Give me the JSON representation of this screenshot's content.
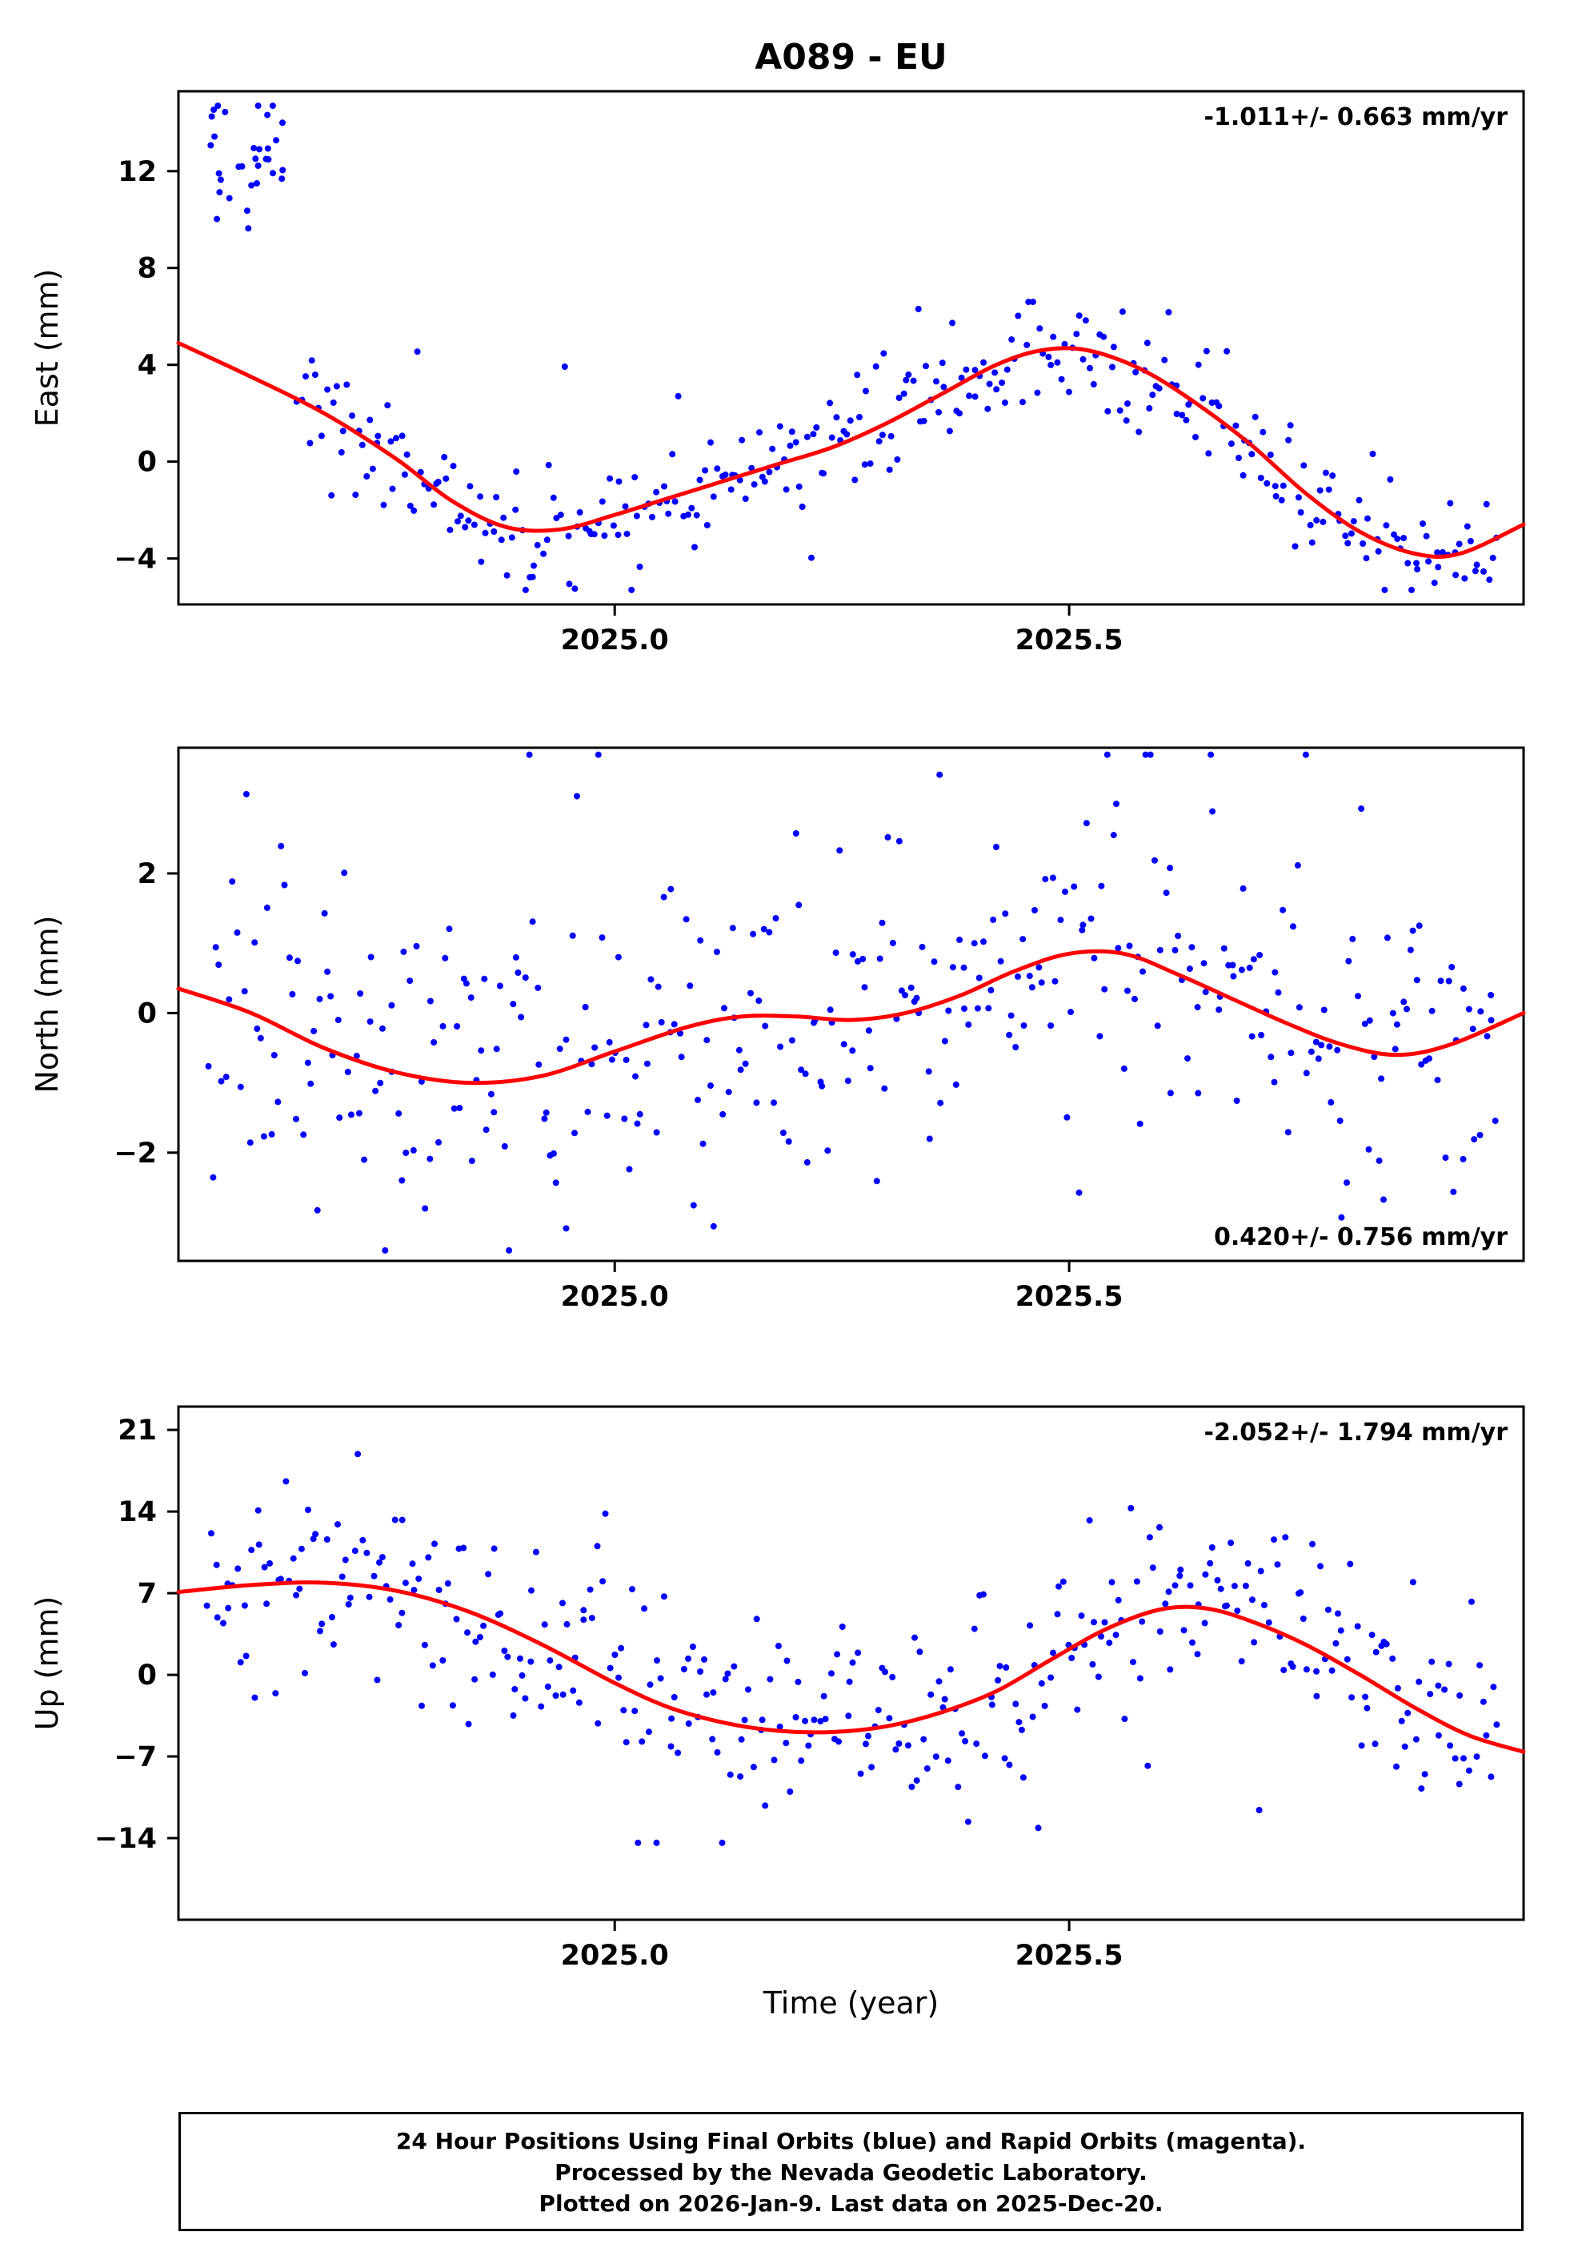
{
  "page": {
    "title": "A089 - EU",
    "xlabel": "Time (year)",
    "footer_lines": [
      "24 Hour Positions Using Final Orbits (blue) and Rapid Orbits (magenta).",
      "Processed by the Nevada Geodetic Laboratory.",
      "Plotted on 2026-Jan-9. Last data on 2025-Dec-20."
    ]
  },
  "colors": {
    "points": "#0000ff",
    "trend": "#ff0000",
    "frame": "#000000"
  },
  "chart_data": [
    {
      "type": "scatter",
      "panel": "east",
      "ylabel": "East (mm)",
      "ylim": [
        -5.9,
        15.3
      ],
      "yticks": [
        -4,
        0,
        4,
        8,
        12
      ],
      "ytick_labels": [
        "−4",
        "0",
        "4",
        "8",
        "12"
      ],
      "xlim": [
        2024.52,
        2026.0
      ],
      "xticks": [
        2025.0,
        2025.5
      ],
      "xtick_labels": [
        "2025.0",
        "2025.5"
      ],
      "annotation": {
        "text": "-1.011+/- 0.663 mm/yr",
        "position": "top-right"
      },
      "rate_mm_per_yr": -1.011,
      "rate_sigma_mm_per_yr": 0.663,
      "trend": [
        [
          2024.52,
          4.9
        ],
        [
          2024.6,
          3.5
        ],
        [
          2024.68,
          2.0
        ],
        [
          2024.76,
          0.1
        ],
        [
          2024.82,
          -1.6
        ],
        [
          2024.88,
          -2.7
        ],
        [
          2024.94,
          -2.8
        ],
        [
          2025.0,
          -2.2
        ],
        [
          2025.06,
          -1.5
        ],
        [
          2025.12,
          -0.8
        ],
        [
          2025.18,
          -0.1
        ],
        [
          2025.24,
          0.6
        ],
        [
          2025.3,
          1.6
        ],
        [
          2025.36,
          2.8
        ],
        [
          2025.42,
          4.0
        ],
        [
          2025.47,
          4.6
        ],
        [
          2025.52,
          4.6
        ],
        [
          2025.58,
          3.8
        ],
        [
          2025.64,
          2.4
        ],
        [
          2025.7,
          0.7
        ],
        [
          2025.76,
          -1.3
        ],
        [
          2025.82,
          -2.9
        ],
        [
          2025.88,
          -3.8
        ],
        [
          2025.93,
          -3.8
        ],
        [
          2026.0,
          -2.6
        ]
      ],
      "scatter": {
        "seed": 7,
        "n": 340,
        "sd": 1.25,
        "x_start": 2024.652,
        "x_end": 2025.97,
        "outlier_frac": 0.04,
        "clip": [
          -5.3,
          6.6
        ]
      },
      "cluster": {
        "seed": 101,
        "n": 32,
        "x_range": [
          2024.553,
          2024.638
        ],
        "y_mean": 12.9,
        "y_sd": 1.4,
        "y_clip": [
          8.8,
          14.7
        ]
      }
    },
    {
      "type": "scatter",
      "panel": "north",
      "ylabel": "North (mm)",
      "ylim": [
        -3.55,
        3.8
      ],
      "yticks": [
        -2,
        0,
        2
      ],
      "ytick_labels": [
        "−2",
        "0",
        "2"
      ],
      "xlim": [
        2024.52,
        2026.0
      ],
      "xticks": [
        2025.0,
        2025.5
      ],
      "xtick_labels": [
        "2025.0",
        "2025.5"
      ],
      "annotation": {
        "text": "0.420+/- 0.756 mm/yr",
        "position": "bottom-right"
      },
      "rate_mm_per_yr": 0.42,
      "rate_sigma_mm_per_yr": 0.756,
      "trend": [
        [
          2024.52,
          0.35
        ],
        [
          2024.6,
          0.0
        ],
        [
          2024.68,
          -0.5
        ],
        [
          2024.76,
          -0.85
        ],
        [
          2024.84,
          -1.0
        ],
        [
          2024.92,
          -0.9
        ],
        [
          2025.0,
          -0.55
        ],
        [
          2025.08,
          -0.2
        ],
        [
          2025.14,
          -0.05
        ],
        [
          2025.2,
          -0.05
        ],
        [
          2025.26,
          -0.1
        ],
        [
          2025.32,
          0.0
        ],
        [
          2025.38,
          0.25
        ],
        [
          2025.44,
          0.6
        ],
        [
          2025.5,
          0.85
        ],
        [
          2025.56,
          0.85
        ],
        [
          2025.62,
          0.55
        ],
        [
          2025.68,
          0.2
        ],
        [
          2025.74,
          -0.15
        ],
        [
          2025.8,
          -0.45
        ],
        [
          2025.86,
          -0.6
        ],
        [
          2025.92,
          -0.45
        ],
        [
          2026.0,
          0.0
        ]
      ],
      "scatter": {
        "seed": 11,
        "n": 370,
        "sd": 1.15,
        "x_start": 2024.553,
        "x_end": 2025.97,
        "outlier_frac": 0.05,
        "clip": [
          -3.4,
          3.7
        ]
      }
    },
    {
      "type": "scatter",
      "panel": "up",
      "ylabel": "Up (mm)",
      "ylim": [
        -21,
        23
      ],
      "yticks": [
        -14,
        -7,
        0,
        7,
        14,
        21
      ],
      "ytick_labels": [
        "−14",
        "−7",
        "0",
        "7",
        "14",
        "21"
      ],
      "xlim": [
        2024.52,
        2026.0
      ],
      "xticks": [
        2025.0,
        2025.5
      ],
      "xtick_labels": [
        "2025.0",
        "2025.5"
      ],
      "annotation": {
        "text": "-2.052+/- 1.794 mm/yr",
        "position": "top-right"
      },
      "rate_mm_per_yr": -2.052,
      "rate_sigma_mm_per_yr": 1.794,
      "trend": [
        [
          2024.52,
          7.1
        ],
        [
          2024.6,
          7.7
        ],
        [
          2024.68,
          7.9
        ],
        [
          2024.76,
          7.2
        ],
        [
          2024.84,
          5.4
        ],
        [
          2024.92,
          2.6
        ],
        [
          2025.0,
          -0.7
        ],
        [
          2025.06,
          -2.8
        ],
        [
          2025.12,
          -4.1
        ],
        [
          2025.18,
          -4.8
        ],
        [
          2025.24,
          -4.9
        ],
        [
          2025.3,
          -4.4
        ],
        [
          2025.36,
          -3.2
        ],
        [
          2025.42,
          -1.4
        ],
        [
          2025.48,
          1.3
        ],
        [
          2025.54,
          3.9
        ],
        [
          2025.6,
          5.6
        ],
        [
          2025.65,
          5.7
        ],
        [
          2025.7,
          4.6
        ],
        [
          2025.76,
          2.6
        ],
        [
          2025.82,
          0.0
        ],
        [
          2025.88,
          -2.8
        ],
        [
          2025.94,
          -5.2
        ],
        [
          2026.0,
          -6.6
        ]
      ],
      "scatter": {
        "seed": 23,
        "n": 370,
        "sd": 4.3,
        "x_start": 2024.553,
        "x_end": 2025.97,
        "outlier_frac": 0.05,
        "clip": [
          -14.4,
          21.4
        ]
      }
    }
  ]
}
